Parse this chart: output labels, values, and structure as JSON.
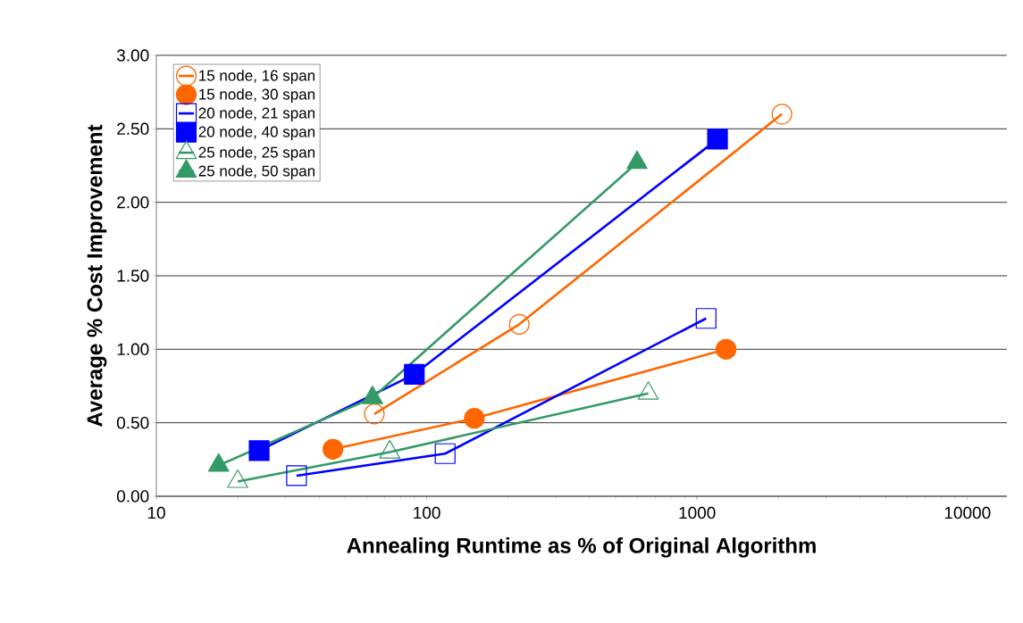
{
  "chart_data": {
    "type": "line",
    "xlabel": "Annealing Runtime as % of Original Algorithm",
    "ylabel": "Average % Cost Improvement",
    "log": "x",
    "xlim": [
      10,
      14000
    ],
    "xticks": [
      10,
      100,
      1000,
      10000
    ],
    "ylim": [
      0,
      3
    ],
    "yticks": [
      {
        "value": 0,
        "label": "0.00"
      },
      {
        "value": 0.5,
        "label": "0.50"
      },
      {
        "value": 1,
        "label": "1.00"
      },
      {
        "value": 1.5,
        "label": "1.50"
      },
      {
        "value": 2,
        "label": "2.00"
      },
      {
        "value": 2.5,
        "label": "2.50"
      },
      {
        "value": 3,
        "label": "3.00"
      }
    ],
    "grid": "y",
    "legend": "top left",
    "series": [
      {
        "name": "15 node, 16 span",
        "color": "#ff6600",
        "marker": "circle-open",
        "x": [
          64,
          220,
          2060
        ],
        "values": [
          0.56,
          1.17,
          2.6
        ]
      },
      {
        "name": "15 node, 30 span",
        "color": "#ff6600",
        "marker": "circle",
        "x": [
          45,
          150,
          1280
        ],
        "values": [
          0.32,
          0.53,
          1.0
        ]
      },
      {
        "name": "20 node, 21 span",
        "color": "#0000ff",
        "marker": "square-open",
        "x": [
          33,
          117,
          1080
        ],
        "values": [
          0.14,
          0.29,
          1.21
        ]
      },
      {
        "name": "20 node, 40 span",
        "color": "#0000ff",
        "marker": "square",
        "x": [
          24,
          90,
          1190
        ],
        "values": [
          0.31,
          0.83,
          2.43
        ]
      },
      {
        "name": "25 node, 25 span",
        "color": "#339966",
        "marker": "triangle-open",
        "x": [
          20,
          73,
          660
        ],
        "values": [
          0.1,
          0.3,
          0.7
        ]
      },
      {
        "name": "25 node, 50 span",
        "color": "#339966",
        "marker": "triangle",
        "x": [
          17,
          63,
          600
        ],
        "values": [
          0.21,
          0.67,
          2.27
        ]
      }
    ]
  }
}
